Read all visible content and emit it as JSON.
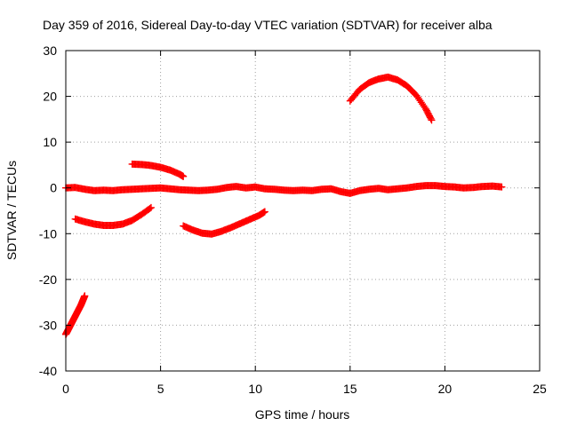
{
  "chart_data": {
    "type": "scatter",
    "title": "Day 359 of 2016, Sidereal Day-to-day VTEC variation (SDTVAR) for receiver alba",
    "xlabel": "GPS time / hours",
    "ylabel": "SDTVAR / TECUs",
    "xlim": [
      0,
      25
    ],
    "ylim": [
      -40,
      30
    ],
    "x_ticks": [
      0,
      5,
      10,
      15,
      20,
      25
    ],
    "y_ticks": [
      -40,
      -30,
      -20,
      -10,
      0,
      10,
      20,
      30
    ],
    "grid": true,
    "marker": "plus",
    "series": [
      {
        "name": "segment-1",
        "color": "#ff0000",
        "points": [
          [
            0.0,
            -32.0
          ],
          [
            0.1,
            -31.2
          ],
          [
            0.2,
            -30.4
          ],
          [
            0.3,
            -29.6
          ],
          [
            0.4,
            -28.8
          ],
          [
            0.5,
            -28.0
          ],
          [
            0.6,
            -27.2
          ],
          [
            0.7,
            -26.4
          ],
          [
            0.8,
            -25.6
          ],
          [
            0.9,
            -24.6
          ],
          [
            1.0,
            -23.6
          ]
        ]
      },
      {
        "name": "segment-2",
        "color": "#ff0000",
        "points": [
          [
            0.0,
            0.0
          ],
          [
            0.5,
            0.1
          ],
          [
            1.0,
            -0.3
          ],
          [
            1.5,
            -0.6
          ],
          [
            2.0,
            -0.5
          ],
          [
            2.5,
            -0.6
          ],
          [
            3.0,
            -0.4
          ],
          [
            3.5,
            -0.3
          ],
          [
            4.0,
            -0.2
          ],
          [
            4.5,
            -0.1
          ],
          [
            5.0,
            0.0
          ],
          [
            5.5,
            -0.2
          ],
          [
            6.0,
            -0.4
          ],
          [
            6.5,
            -0.5
          ],
          [
            7.0,
            -0.6
          ],
          [
            7.5,
            -0.5
          ],
          [
            8.0,
            -0.3
          ],
          [
            8.5,
            0.1
          ],
          [
            9.0,
            0.3
          ],
          [
            9.5,
            0.0
          ],
          [
            10.0,
            0.2
          ],
          [
            10.5,
            -0.2
          ],
          [
            11.0,
            -0.3
          ],
          [
            11.5,
            -0.5
          ],
          [
            12.0,
            -0.6
          ],
          [
            12.5,
            -0.5
          ],
          [
            13.0,
            -0.6
          ],
          [
            13.5,
            -0.3
          ],
          [
            14.0,
            -0.2
          ],
          [
            14.5,
            -0.8
          ],
          [
            15.0,
            -1.2
          ],
          [
            15.5,
            -0.6
          ],
          [
            16.0,
            -0.3
          ],
          [
            16.5,
            -0.1
          ],
          [
            17.0,
            -0.4
          ],
          [
            17.5,
            -0.2
          ],
          [
            18.0,
            0.0
          ],
          [
            18.5,
            0.3
          ],
          [
            19.0,
            0.5
          ],
          [
            19.5,
            0.5
          ],
          [
            20.0,
            0.3
          ],
          [
            20.5,
            0.2
          ],
          [
            21.0,
            0.0
          ],
          [
            21.5,
            0.1
          ],
          [
            22.0,
            0.3
          ],
          [
            22.5,
            0.4
          ],
          [
            23.0,
            0.2
          ]
        ]
      },
      {
        "name": "segment-3",
        "color": "#ff0000",
        "points": [
          [
            0.5,
            -6.8
          ],
          [
            1.0,
            -7.4
          ],
          [
            1.5,
            -7.9
          ],
          [
            2.0,
            -8.2
          ],
          [
            2.5,
            -8.2
          ],
          [
            3.0,
            -7.9
          ],
          [
            3.5,
            -7.1
          ],
          [
            4.0,
            -5.8
          ],
          [
            4.5,
            -4.3
          ]
        ]
      },
      {
        "name": "segment-4",
        "color": "#ff0000",
        "points": [
          [
            3.5,
            5.2
          ],
          [
            4.0,
            5.1
          ],
          [
            4.5,
            4.9
          ],
          [
            5.0,
            4.5
          ],
          [
            5.5,
            3.9
          ],
          [
            6.0,
            3.0
          ],
          [
            6.2,
            2.5
          ]
        ]
      },
      {
        "name": "segment-5",
        "color": "#ff0000",
        "points": [
          [
            6.2,
            -8.3
          ],
          [
            6.7,
            -9.2
          ],
          [
            7.2,
            -9.9
          ],
          [
            7.7,
            -10.1
          ],
          [
            8.2,
            -9.5
          ],
          [
            8.7,
            -8.7
          ],
          [
            9.2,
            -7.8
          ],
          [
            9.7,
            -6.9
          ],
          [
            10.2,
            -6.0
          ],
          [
            10.5,
            -5.2
          ]
        ]
      },
      {
        "name": "segment-6",
        "color": "#ff0000",
        "points": [
          [
            15.0,
            19.0
          ],
          [
            15.5,
            21.5
          ],
          [
            16.0,
            23.0
          ],
          [
            16.5,
            23.8
          ],
          [
            17.0,
            24.2
          ],
          [
            17.5,
            23.6
          ],
          [
            18.0,
            22.3
          ],
          [
            18.5,
            20.2
          ],
          [
            19.0,
            17.2
          ],
          [
            19.3,
            14.8
          ]
        ]
      }
    ]
  }
}
